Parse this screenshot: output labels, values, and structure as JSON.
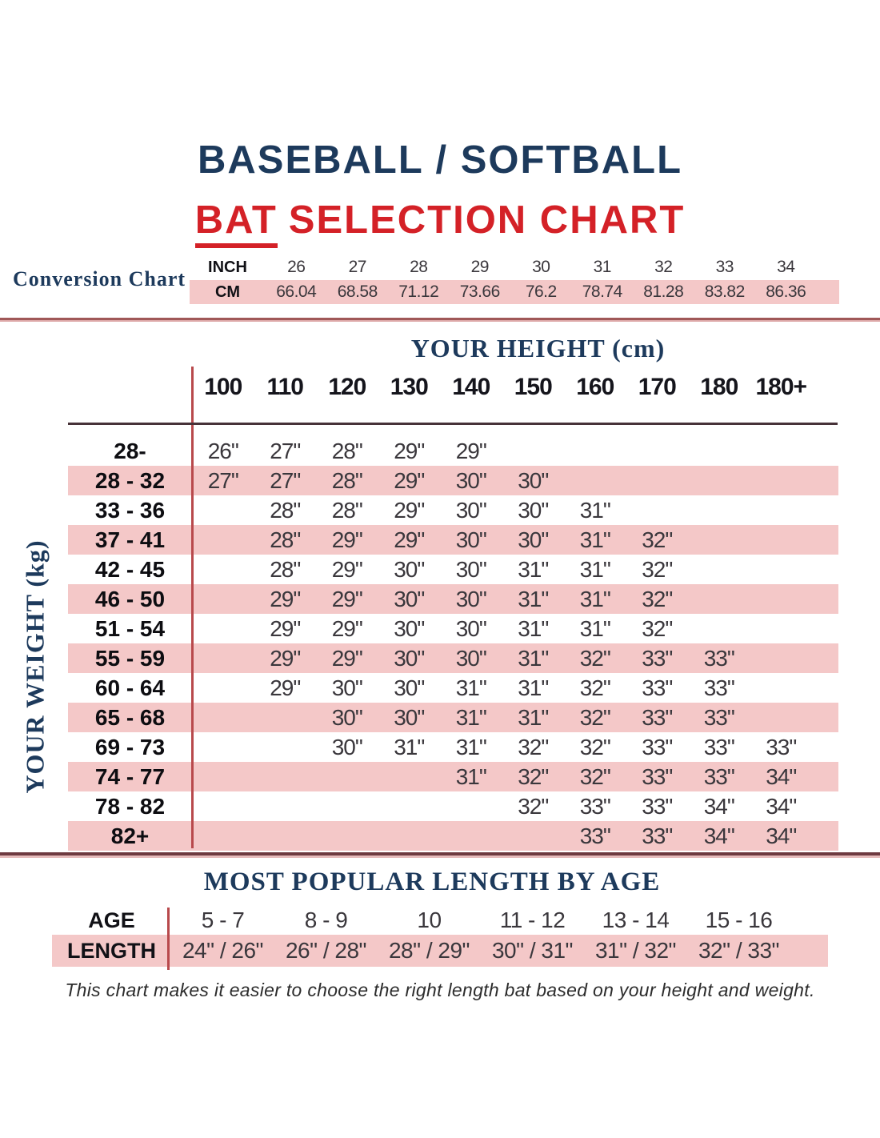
{
  "header": {
    "title_line1": "BASEBALL / SOFTBALL",
    "title_bat": "BAT",
    "title_rest": "SELECTION CHART"
  },
  "colors": {
    "navy": "#1d3a5c",
    "red": "#d42127",
    "pink": "#f4c8c8",
    "line_red": "#b8494c",
    "divider": "#a05858"
  },
  "footer_note": "This chart makes it easier to choose the right length bat based on your height and weight.",
  "chart_data": [
    {
      "type": "table",
      "name": "conversion-chart",
      "title": "Conversion Chart",
      "inch_label": "INCH",
      "cm_label": "CM",
      "inches": [
        "26",
        "27",
        "28",
        "29",
        "30",
        "31",
        "32",
        "33",
        "34"
      ],
      "cms": [
        "66.04",
        "68.58",
        "71.12",
        "73.66",
        "76.2",
        "78.74",
        "81.28",
        "83.82",
        "86.36"
      ]
    },
    {
      "type": "table",
      "name": "bat-selection-matrix",
      "xlabel": "YOUR HEIGHT (cm)",
      "ylabel": "YOUR WEIGHT (kg)",
      "columns": [
        "100",
        "110",
        "120",
        "130",
        "140",
        "150",
        "160",
        "170",
        "180",
        "180+"
      ],
      "rows": [
        {
          "label": "28-",
          "values": [
            "26\"",
            "27\"",
            "28\"",
            "29\"",
            "29\"",
            "",
            "",
            "",
            "",
            ""
          ]
        },
        {
          "label": "28 - 32",
          "values": [
            "27\"",
            "27\"",
            "28\"",
            "29\"",
            "30\"",
            "30\"",
            "",
            "",
            "",
            ""
          ]
        },
        {
          "label": "33 - 36",
          "values": [
            "",
            "28\"",
            "28\"",
            "29\"",
            "30\"",
            "30\"",
            "31\"",
            "",
            "",
            ""
          ]
        },
        {
          "label": "37 - 41",
          "values": [
            "",
            "28\"",
            "29\"",
            "29\"",
            "30\"",
            "30\"",
            "31\"",
            "32\"",
            "",
            ""
          ]
        },
        {
          "label": "42 - 45",
          "values": [
            "",
            "28\"",
            "29\"",
            "30\"",
            "30\"",
            "31\"",
            "31\"",
            "32\"",
            "",
            ""
          ]
        },
        {
          "label": "46 - 50",
          "values": [
            "",
            "29\"",
            "29\"",
            "30\"",
            "30\"",
            "31\"",
            "31\"",
            "32\"",
            "",
            ""
          ]
        },
        {
          "label": "51 - 54",
          "values": [
            "",
            "29\"",
            "29\"",
            "30\"",
            "30\"",
            "31\"",
            "31\"",
            "32\"",
            "",
            ""
          ]
        },
        {
          "label": "55 - 59",
          "values": [
            "",
            "29\"",
            "29\"",
            "30\"",
            "30\"",
            "31\"",
            "32\"",
            "33\"",
            "33\"",
            ""
          ]
        },
        {
          "label": "60 - 64",
          "values": [
            "",
            "29\"",
            "30\"",
            "30\"",
            "31\"",
            "31\"",
            "32\"",
            "33\"",
            "33\"",
            ""
          ]
        },
        {
          "label": "65 - 68",
          "values": [
            "",
            "",
            "30\"",
            "30\"",
            "31\"",
            "31\"",
            "32\"",
            "33\"",
            "33\"",
            ""
          ]
        },
        {
          "label": "69 - 73",
          "values": [
            "",
            "",
            "30\"",
            "31\"",
            "31\"",
            "32\"",
            "32\"",
            "33\"",
            "33\"",
            "33\""
          ]
        },
        {
          "label": "74 - 77",
          "values": [
            "",
            "",
            "",
            "",
            "31\"",
            "32\"",
            "32\"",
            "33\"",
            "33\"",
            "34\""
          ]
        },
        {
          "label": "78 - 82",
          "values": [
            "",
            "",
            "",
            "",
            "",
            "32\"",
            "33\"",
            "33\"",
            "34\"",
            "34\""
          ]
        },
        {
          "label": "82+",
          "values": [
            "",
            "",
            "",
            "",
            "",
            "",
            "33\"",
            "33\"",
            "34\"",
            "34\""
          ]
        }
      ]
    },
    {
      "type": "table",
      "name": "popular-length-by-age",
      "title": "MOST POPULAR LENGTH BY AGE",
      "age_label": "AGE",
      "length_label": "LENGTH",
      "ages": [
        "5 - 7",
        "8 - 9",
        "10",
        "11 - 12",
        "13 - 14",
        "15 - 16"
      ],
      "lengths": [
        "24\" / 26\"",
        "26\" / 28\"",
        "28\" / 29\"",
        "30\" / 31\"",
        "31\" / 32\"",
        "32\" / 33\""
      ]
    }
  ]
}
